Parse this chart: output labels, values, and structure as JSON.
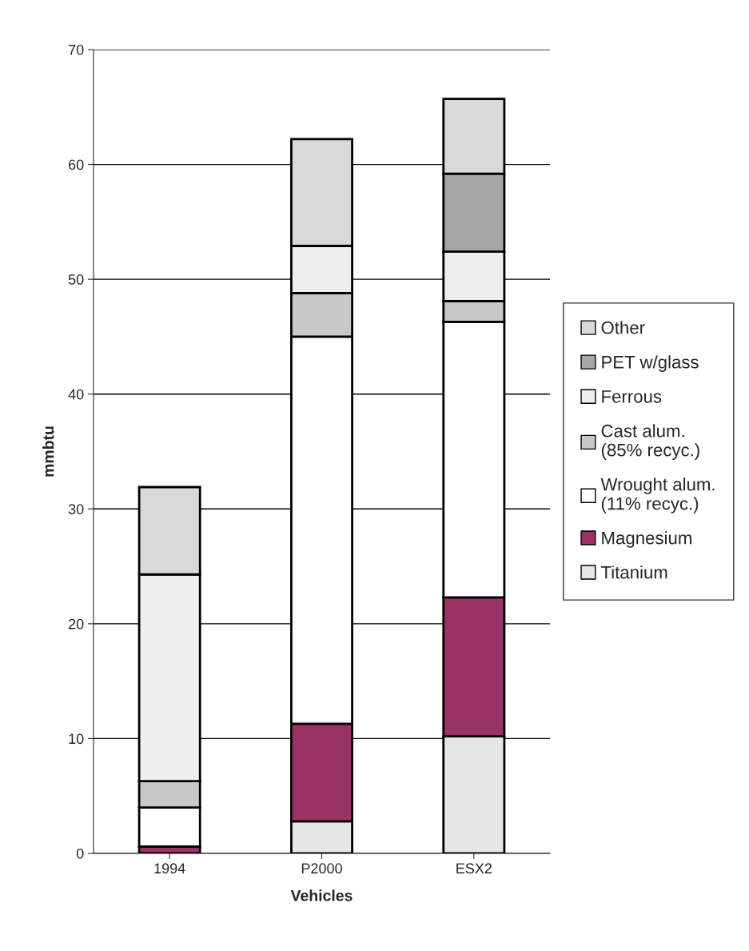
{
  "chart_data": {
    "type": "bar",
    "stacked": true,
    "xlabel": "Vehicles",
    "ylabel": "mmbtu",
    "categories": [
      "1994",
      "P2000",
      "ESX2"
    ],
    "series": [
      {
        "name": "Titanium",
        "color": "#e6e6e6",
        "values": [
          0,
          2.8,
          10.2
        ]
      },
      {
        "name": "Magnesium",
        "color": "#993366",
        "values": [
          0.6,
          8.5,
          12.1
        ]
      },
      {
        "name": "Wrought alum.\n(11% recyc.)",
        "color": "#ffffff",
        "values": [
          3.4,
          33.7,
          24.0
        ]
      },
      {
        "name": "Cast alum.\n(85% recyc.)",
        "color": "#c8c8c8",
        "values": [
          2.3,
          3.8,
          1.8
        ]
      },
      {
        "name": "Ferrous",
        "color": "#eeeeee",
        "values": [
          18.0,
          4.1,
          4.3
        ]
      },
      {
        "name": "PET w/glass",
        "color": "#a6a6a6",
        "values": [
          0,
          0,
          6.8
        ]
      },
      {
        "name": "Other",
        "color": "#d9d9d9",
        "values": [
          7.6,
          9.3,
          6.5
        ]
      }
    ],
    "ylim": [
      0,
      70
    ],
    "yticks": [
      0,
      10,
      20,
      30,
      40,
      50,
      60,
      70
    ],
    "grid": "y",
    "legend": "right"
  }
}
